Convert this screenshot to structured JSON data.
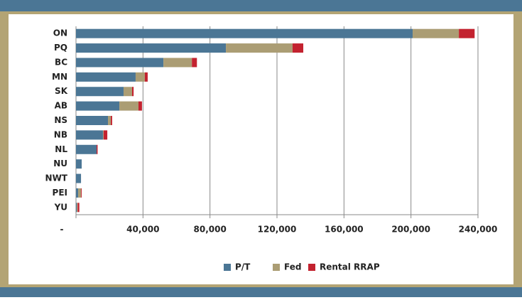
{
  "chart_data": {
    "type": "stacked-barh",
    "categories": [
      "ON",
      "PQ",
      "BC",
      "MN",
      "SK",
      "AB",
      "NS",
      "NB",
      "NL",
      "NU",
      "NWT",
      "PEI",
      "YU"
    ],
    "series": [
      {
        "name": "P/T",
        "color": "#4b7695",
        "values": [
          201000,
          89500,
          52200,
          35600,
          28400,
          25900,
          19100,
          16100,
          12300,
          3400,
          3000,
          1300,
          500
        ]
      },
      {
        "name": "Fed",
        "color": "#ab9d74",
        "values": [
          27600,
          39800,
          17000,
          5500,
          5100,
          11400,
          1700,
          400,
          0,
          0,
          0,
          1700,
          500
        ]
      },
      {
        "name": "Rental RRAP",
        "color": "#c3222f",
        "values": [
          9400,
          6400,
          3000,
          1700,
          900,
          2100,
          800,
          2200,
          600,
          0,
          0,
          400,
          1000
        ]
      }
    ],
    "xlim": [
      0,
      240000
    ],
    "xticks": [
      {
        "value": 0,
        "label": "-"
      },
      {
        "value": 40000,
        "label": "40,000"
      },
      {
        "value": 80000,
        "label": "80,000"
      },
      {
        "value": 120000,
        "label": "120,000"
      },
      {
        "value": 160000,
        "label": "160,000"
      },
      {
        "value": 200000,
        "label": "200,000"
      },
      {
        "value": 240000,
        "label": "240,000"
      }
    ],
    "grid": true,
    "legend": "bottom"
  }
}
